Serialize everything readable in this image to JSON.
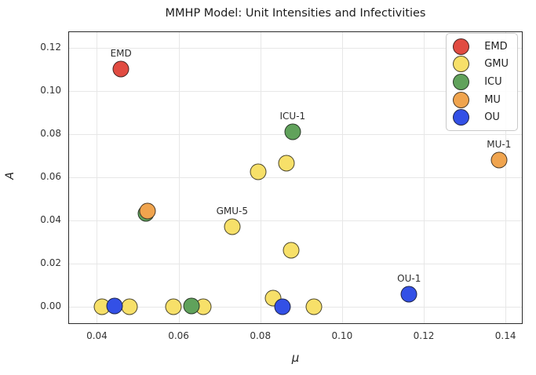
{
  "chart_data": {
    "type": "scatter",
    "title": "MMHP Model: Unit Intensities and Infectivities",
    "xlabel": "μ",
    "ylabel": "A",
    "xlim": [
      0.033,
      0.1442
    ],
    "ylim": [
      -0.008,
      0.1276
    ],
    "xticks": [
      0.04,
      0.06,
      0.08,
      0.1,
      0.12,
      0.14
    ],
    "yticks": [
      0.0,
      0.02,
      0.04,
      0.06,
      0.08,
      0.1,
      0.12
    ],
    "grid": true,
    "legend_position": "upper right",
    "grid_color": "#e7e7e7",
    "edge_color": "#1a1a1a",
    "series": [
      {
        "name": "EMD",
        "color": "#e14b41",
        "points": [
          {
            "x": 0.0459,
            "y": 0.11,
            "label": "EMD"
          }
        ]
      },
      {
        "name": "GMU",
        "color": "#f7e069",
        "points": [
          {
            "x": 0.0413,
            "y": 0.0
          },
          {
            "x": 0.0479,
            "y": 0.0
          },
          {
            "x": 0.0587,
            "y": 0.0
          },
          {
            "x": 0.066,
            "y": 0.0
          },
          {
            "x": 0.0731,
            "y": 0.0372,
            "label": "GMU-5"
          },
          {
            "x": 0.0794,
            "y": 0.0624
          },
          {
            "x": 0.0831,
            "y": 0.0039
          },
          {
            "x": 0.0864,
            "y": 0.0665
          },
          {
            "x": 0.0875,
            "y": 0.0261
          },
          {
            "x": 0.0931,
            "y": 0.0
          }
        ]
      },
      {
        "name": "ICU",
        "color": "#60a25b",
        "points": [
          {
            "x": 0.0521,
            "y": 0.0433
          },
          {
            "x": 0.0631,
            "y": 0.0004
          },
          {
            "x": 0.0879,
            "y": 0.081,
            "label": "ICU-1"
          }
        ]
      },
      {
        "name": "MU",
        "color": "#f0a44e",
        "points": [
          {
            "x": 0.0524,
            "y": 0.0443
          },
          {
            "x": 0.1384,
            "y": 0.0681,
            "label": "MU-1"
          }
        ]
      },
      {
        "name": "OU",
        "color": "#3350e6",
        "points": [
          {
            "x": 0.0443,
            "y": 0.0002
          },
          {
            "x": 0.0854,
            "y": 0.0
          },
          {
            "x": 0.1164,
            "y": 0.0058,
            "label": "OU-1"
          }
        ]
      }
    ]
  }
}
